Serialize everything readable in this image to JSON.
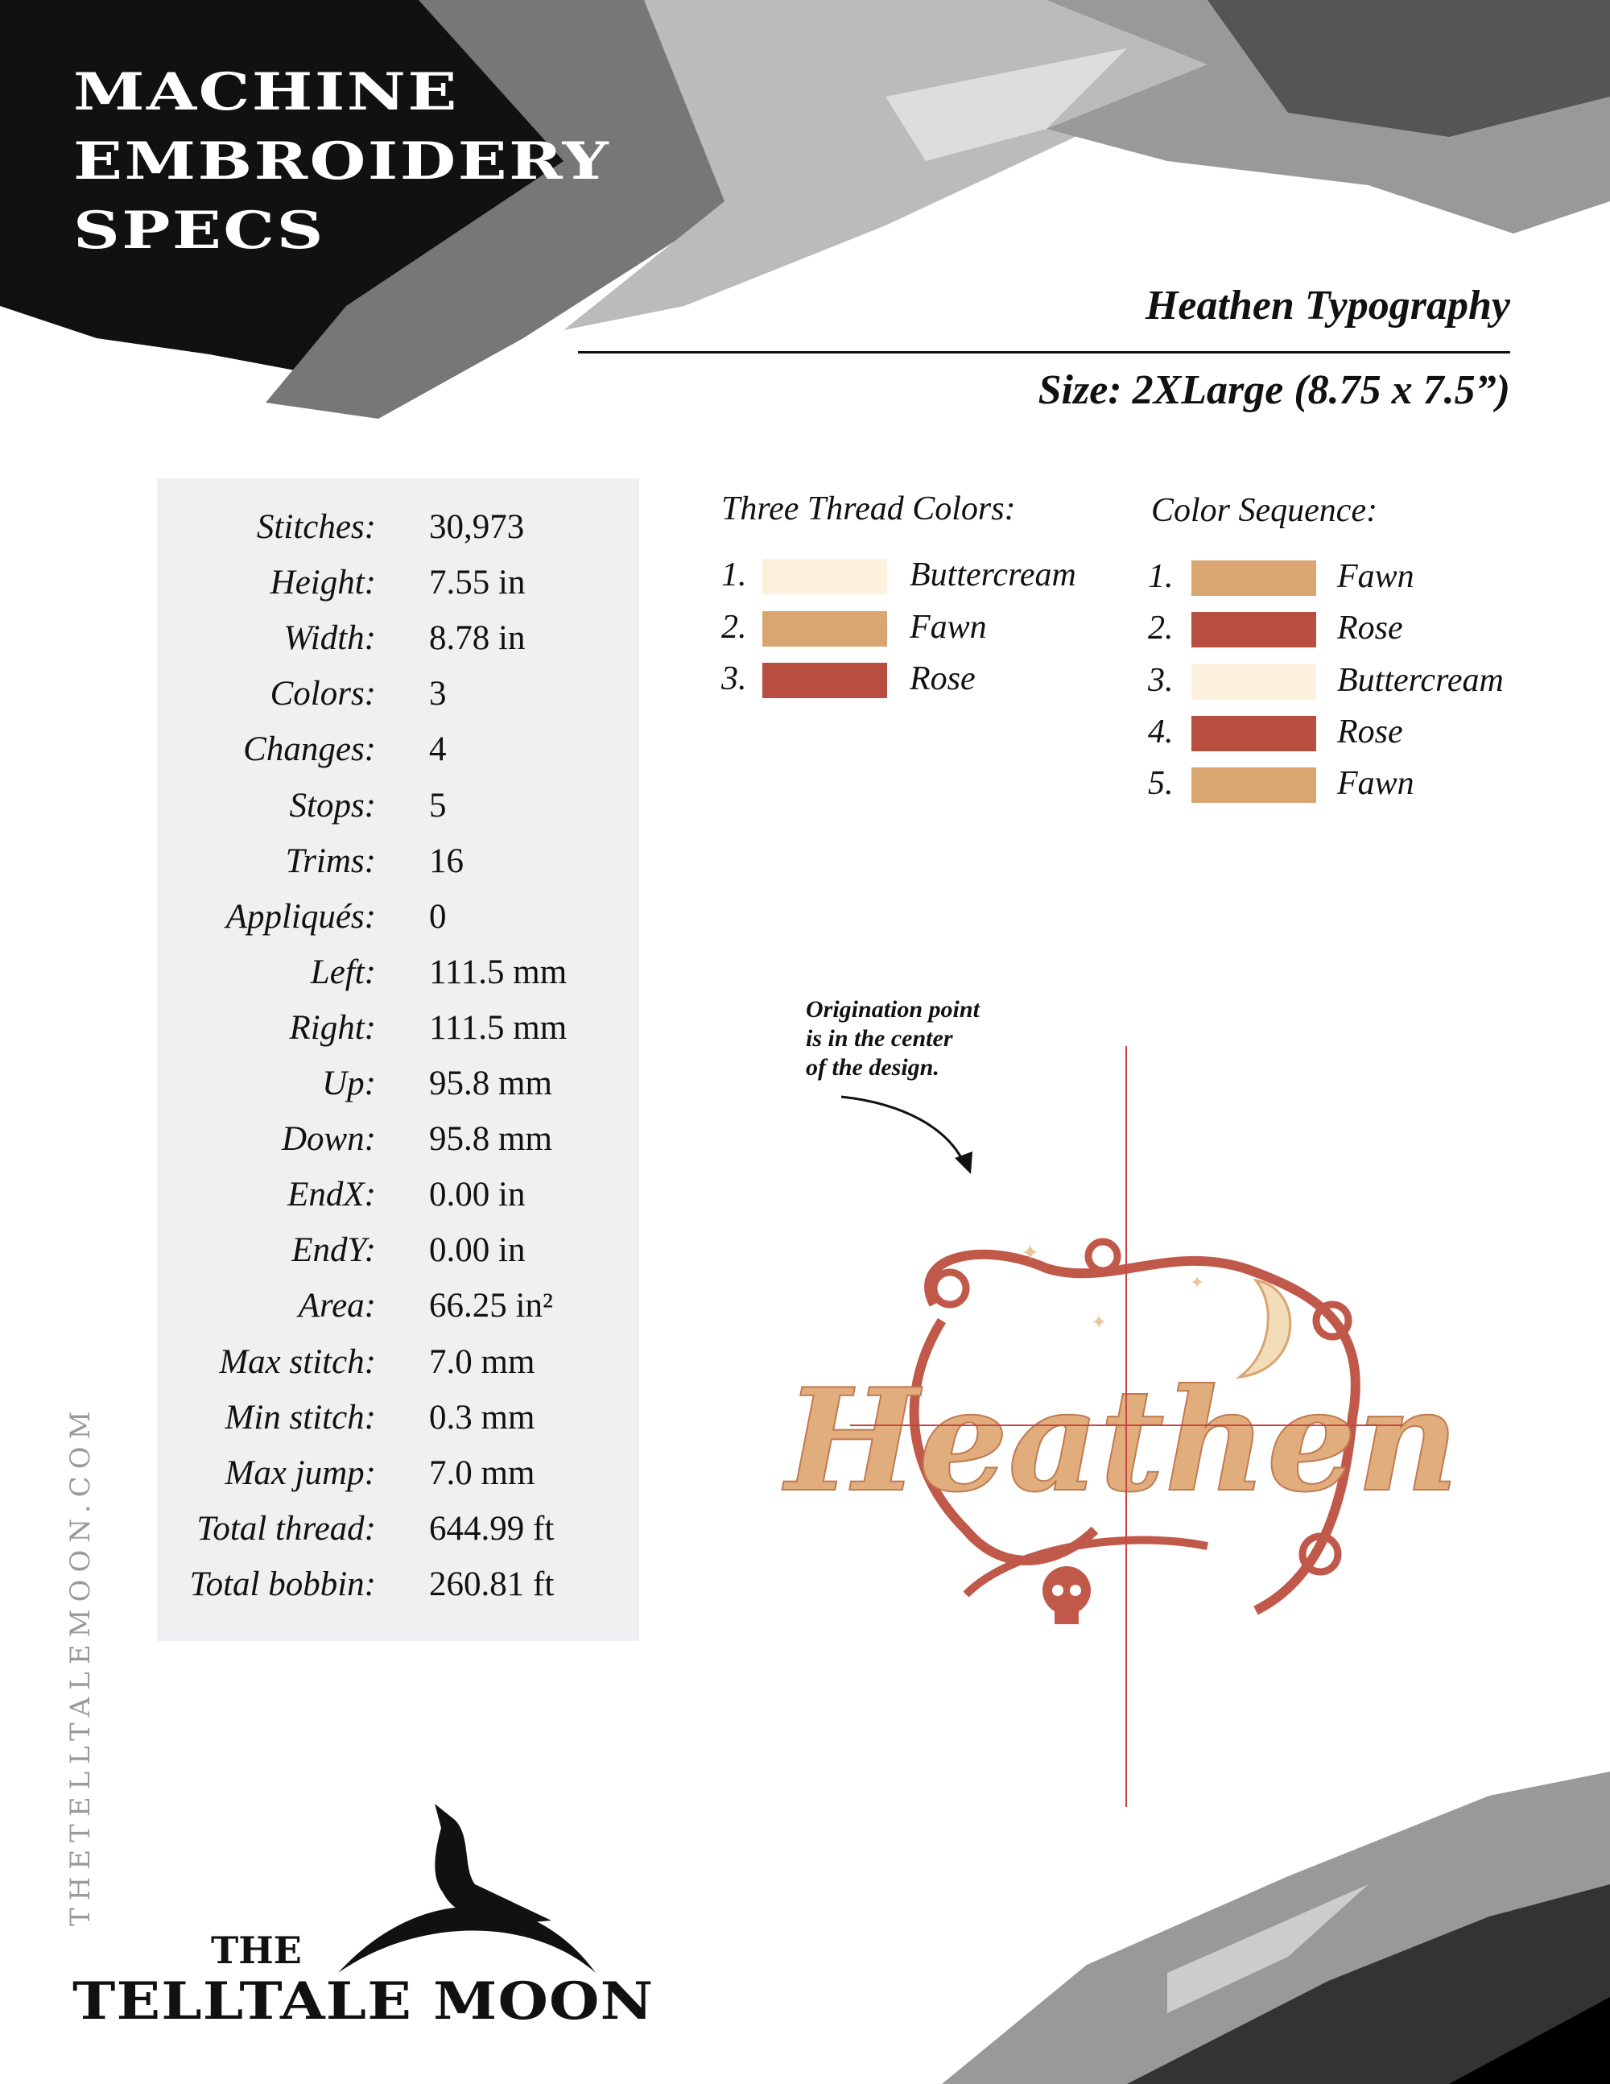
{
  "header": {
    "title_lines": [
      "MACHINE",
      "EMBROIDERY",
      "SPECS"
    ],
    "design_name": "Heathen Typography",
    "size": "Size: 2XLarge (8.75 x 7.5”)"
  },
  "specs": [
    {
      "label": "Stitches:",
      "value": "30,973"
    },
    {
      "label": "Height:",
      "value": "7.55 in"
    },
    {
      "label": "Width:",
      "value": "8.78 in"
    },
    {
      "label": "Colors:",
      "value": "3"
    },
    {
      "label": "Changes:",
      "value": "4"
    },
    {
      "label": "Stops:",
      "value": "5"
    },
    {
      "label": "Trims:",
      "value": "16"
    },
    {
      "label": "Appliqués:",
      "value": "0"
    },
    {
      "label": "Left:",
      "value": "111.5 mm"
    },
    {
      "label": "Right:",
      "value": "111.5 mm"
    },
    {
      "label": "Up:",
      "value": "95.8 mm"
    },
    {
      "label": "Down:",
      "value": "95.8 mm"
    },
    {
      "label": "EndX:",
      "value": "0.00 in"
    },
    {
      "label": "EndY:",
      "value": "0.00 in"
    },
    {
      "label": "Area:",
      "value": "66.25 in²"
    },
    {
      "label": "Max stitch:",
      "value": "7.0 mm"
    },
    {
      "label": "Min stitch:",
      "value": "0.3 mm"
    },
    {
      "label": "Max jump:",
      "value": "7.0 mm"
    },
    {
      "label": "Total thread:",
      "value": "644.99 ft"
    },
    {
      "label": "Total bobbin:",
      "value": "260.81 ft"
    }
  ],
  "thread_colors": {
    "heading": "Three Thread Colors:",
    "items": [
      {
        "num": "1.",
        "name": "Buttercream",
        "color": "#fdf1dd"
      },
      {
        "num": "2.",
        "name": "Fawn",
        "color": "#d9a571"
      },
      {
        "num": "3.",
        "name": "Rose",
        "color": "#b84e40"
      }
    ]
  },
  "color_sequence": {
    "heading": "Color Sequence:",
    "items": [
      {
        "num": "1.",
        "name": "Fawn",
        "color": "#d9a571"
      },
      {
        "num": "2.",
        "name": "Rose",
        "color": "#b84e40"
      },
      {
        "num": "3.",
        "name": "Buttercream",
        "color": "#fdf1dd"
      },
      {
        "num": "4.",
        "name": "Rose",
        "color": "#b84e40"
      },
      {
        "num": "5.",
        "name": "Fawn",
        "color": "#d9a571"
      }
    ]
  },
  "annotation": {
    "lines": [
      "Origination point",
      "is in the center",
      "of the design."
    ]
  },
  "design_preview": {
    "word": "Heathen",
    "icons": [
      "crosshair",
      "skull-icon",
      "crescent-moon-icon",
      "star-icon"
    ]
  },
  "footer": {
    "website": "THETELLTALEMOON.COM",
    "logo_the": "THE",
    "logo_name": "TELLTALE MOON",
    "logo_icon": "raven-on-moon-icon"
  }
}
